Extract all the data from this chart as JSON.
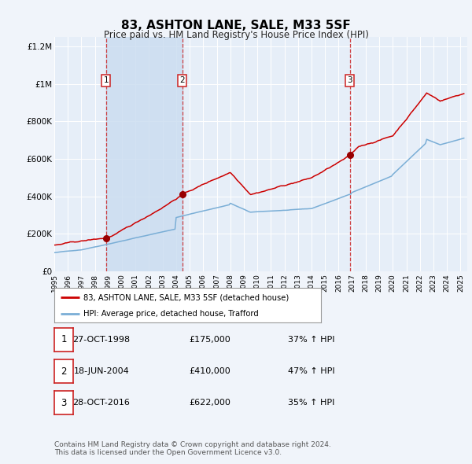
{
  "title": "83, ASHTON LANE, SALE, M33 5SF",
  "subtitle": "Price paid vs. HM Land Registry's House Price Index (HPI)",
  "title_fontsize": 11,
  "subtitle_fontsize": 8.5,
  "background_color": "#f0f4fa",
  "plot_bg_color": "#e6eef8",
  "grid_color": "#ffffff",
  "ylim": [
    0,
    1250000
  ],
  "yticks": [
    0,
    200000,
    400000,
    600000,
    800000,
    1000000,
    1200000
  ],
  "ytick_labels": [
    "£0",
    "£200K",
    "£400K",
    "£600K",
    "£800K",
    "£1M",
    "£1.2M"
  ],
  "xmin": 1995.0,
  "xmax": 2025.5,
  "price_paid_color": "#cc0000",
  "hpi_color": "#7aaed6",
  "sale_marker_color": "#990000",
  "vline_color": "#cc2222",
  "shade_color": "#ccddf0",
  "legend_box_color": "#ffffff",
  "legend_border_color": "#999999",
  "label_price_paid": "83, ASHTON LANE, SALE, M33 5SF (detached house)",
  "label_hpi": "HPI: Average price, detached house, Trafford",
  "sale_dates": [
    1998.82,
    2004.46,
    2016.83
  ],
  "sale_prices": [
    175000,
    410000,
    622000
  ],
  "sale_labels": [
    "1",
    "2",
    "3"
  ],
  "sale_date_strings": [
    "27-OCT-1998",
    "18-JUN-2004",
    "28-OCT-2016"
  ],
  "sale_price_strings": [
    "£175,000",
    "£410,000",
    "£622,000"
  ],
  "sale_hpi_strings": [
    "37% ↑ HPI",
    "47% ↑ HPI",
    "35% ↑ HPI"
  ],
  "footnote": "Contains HM Land Registry data © Crown copyright and database right 2024.\nThis data is licensed under the Open Government Licence v3.0.",
  "footnote_fontsize": 6.5
}
